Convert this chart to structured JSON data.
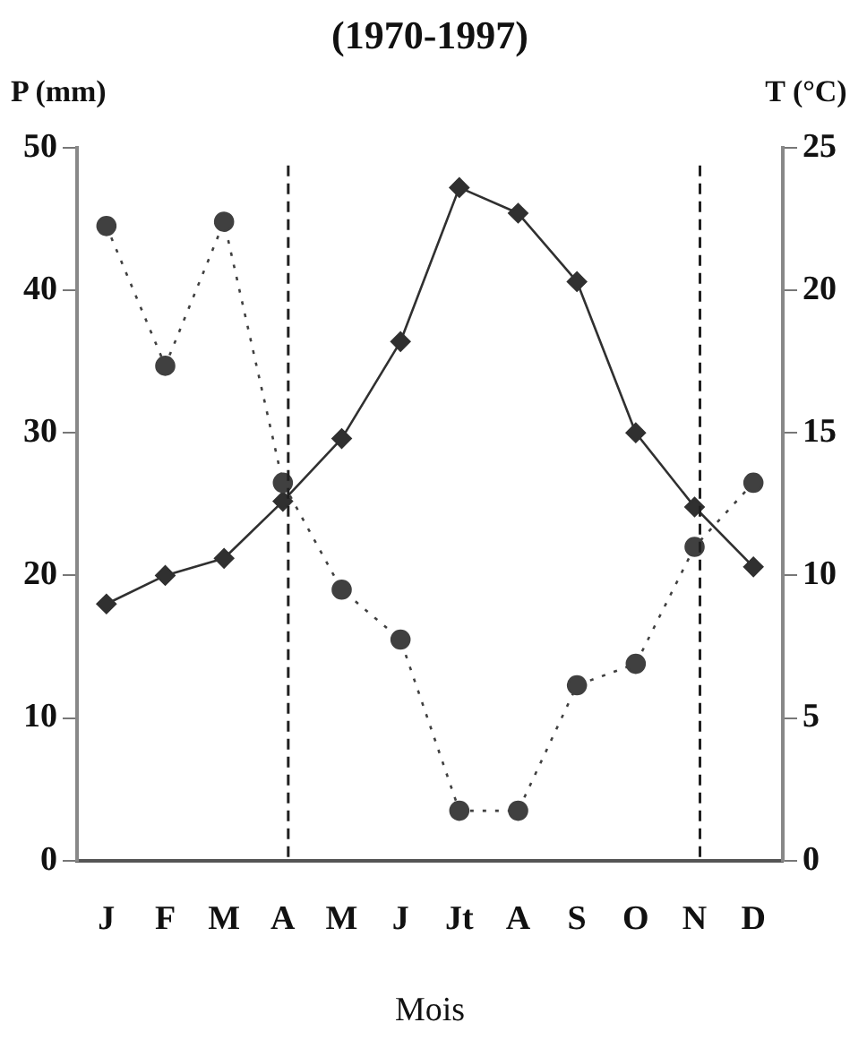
{
  "chart_data": {
    "type": "line",
    "title": "(1970-1997)",
    "xlabel": "Mois",
    "ylabel": "P (mm)",
    "y2label": "T (°C)",
    "categories": [
      "J",
      "F",
      "M",
      "A",
      "M",
      "J",
      "Jt",
      "A",
      "S",
      "O",
      "N",
      "D"
    ],
    "ylim": [
      0,
      50
    ],
    "yticks": [
      0,
      10,
      20,
      30,
      40,
      50
    ],
    "y2lim": [
      0,
      25
    ],
    "y2ticks": [
      0,
      5,
      10,
      15,
      20,
      25
    ],
    "series": [
      {
        "color": "#404040",
        "marker": "circle",
        "line_style": "dotted",
        "values": [
          44.5,
          34.7,
          44.8,
          26.5,
          19,
          15.5,
          3.5,
          3.5,
          12.3,
          13.8,
          22,
          26.5
        ]
      },
      {
        "color": "#303030",
        "marker": "diamond",
        "line_style": "solid",
        "axis": "y2",
        "values": [
          9.0,
          10.0,
          10.6,
          12.6,
          14.8,
          18.2,
          23.6,
          22.7,
          20.3,
          15.0,
          12.4,
          10.3
        ]
      }
    ],
    "ref_lines": [
      {
        "axis": "x",
        "value": "A",
        "color": "#202020",
        "line_style": "dashed"
      },
      {
        "axis": "x",
        "value": "N",
        "color": "#202020",
        "line_style": "dashed"
      }
    ],
    "grid": false,
    "legend": false
  }
}
